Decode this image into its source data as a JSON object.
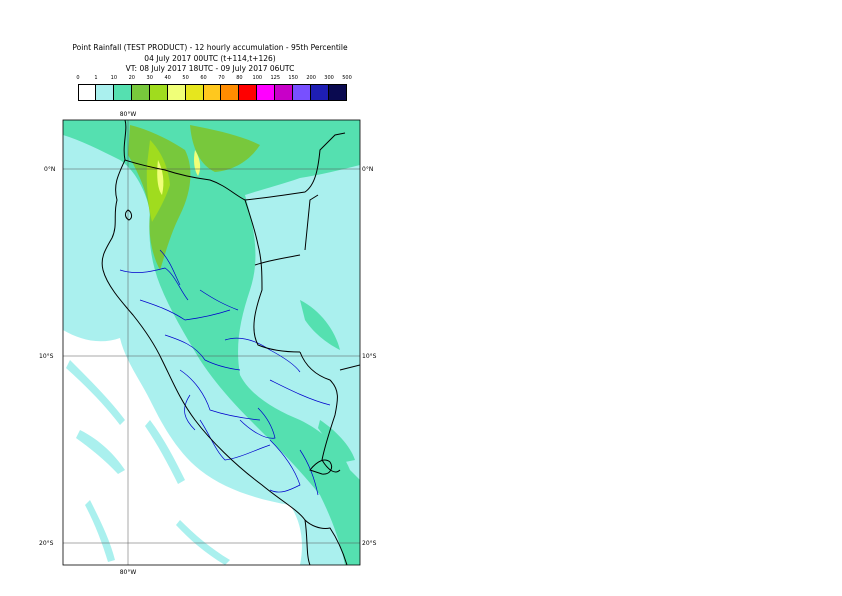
{
  "title": {
    "line1": "Point Rainfall (TEST PRODUCT) - 12 hourly accumulation - 95th Percentile",
    "line2": "04 July 2017 00UTC (t+114,t+126)",
    "line3": "VT: 08 July 2017 18UTC - 09 July 2017 06UTC"
  },
  "legend": {
    "ticks": [
      "0",
      "1",
      "10",
      "20",
      "30",
      "40",
      "50",
      "60",
      "70",
      "80",
      "100",
      "125",
      "150",
      "200",
      "300",
      "500"
    ],
    "colors": [
      "#ffffff",
      "#aaf0ee",
      "#55e0b0",
      "#78c83c",
      "#a0dc1e",
      "#f0ff78",
      "#e6e61e",
      "#ffc81e",
      "#ff8c00",
      "#ff0000",
      "#ff00ff",
      "#c800c8",
      "#7850ff",
      "#1e1eb4",
      "#0a0a50"
    ]
  },
  "axes": {
    "lon_label_top": "80°W",
    "lon_label_bottom": "80°W",
    "lat_labels": [
      {
        "text": "0°N"
      },
      {
        "text": "10°S"
      },
      {
        "text": "20°S"
      }
    ]
  },
  "map": {
    "background_color": "#aaf0ee",
    "sea_no_rain_color": "#ffffff",
    "heavy_color": "#55e0b0",
    "very_heavy_color": "#78c83c",
    "extreme_color": "#a0dc1e",
    "peak_color": "#f0ff78",
    "coast_color": "#000000",
    "region_border_color": "#0000cc"
  }
}
